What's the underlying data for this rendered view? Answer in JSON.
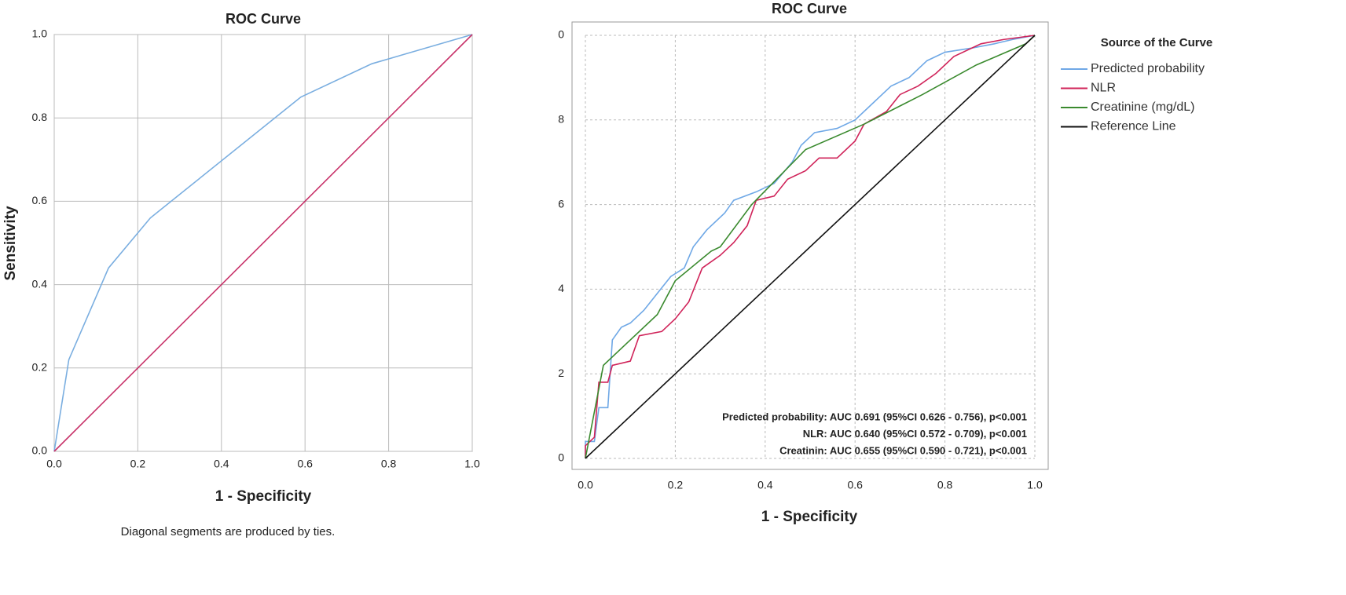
{
  "chart_data": [
    {
      "type": "line",
      "title": "ROC Curve",
      "xlabel": "1 - Specificity",
      "ylabel": "Sensitivity",
      "footnote": "Diagonal segments are produced by ties.",
      "xlim": [
        0,
        1
      ],
      "ylim": [
        0,
        1
      ],
      "xticks": [
        {
          "value": 0,
          "label": "0.0"
        },
        0.2,
        0.4,
        0.6,
        0.8,
        {
          "value": 1,
          "label": "1.0"
        }
      ],
      "yticks": [
        {
          "value": 0,
          "label": "0.0"
        },
        0.2,
        0.4,
        0.6,
        0.8,
        {
          "value": 1,
          "label": "1.0"
        }
      ],
      "grid": true,
      "grid_style": "solid",
      "series": [
        {
          "color": "#7aaee0",
          "x": [
            0,
            0.035,
            0.13,
            0.23,
            0.59,
            0.76,
            1
          ],
          "values": [
            0,
            0.22,
            0.44,
            0.56,
            0.85,
            0.93,
            1
          ]
        },
        {
          "color": "#c8336a",
          "x": [
            0,
            1
          ],
          "values": [
            0,
            1
          ]
        }
      ]
    },
    {
      "type": "line",
      "title": "ROC Curve",
      "xlabel": "1 - Specificity",
      "xlim": [
        0,
        1
      ],
      "ylim": [
        0,
        1
      ],
      "xticks": [
        {
          "value": 0,
          "label": "0.0"
        },
        0.2,
        0.4,
        0.6,
        0.8,
        {
          "value": 1,
          "label": "1.0"
        }
      ],
      "yticks": [
        0,
        {
          "value": 0.2,
          "label": "2"
        },
        {
          "value": 0.4,
          "label": "4"
        },
        {
          "value": 0.6,
          "label": "6"
        },
        {
          "value": 0.8,
          "label": "8"
        },
        {
          "value": 1,
          "label": "0"
        }
      ],
      "grid": true,
      "grid_style": "dotted",
      "legend": "right",
      "legend_title": "Source of the Curve",
      "series": [
        {
          "name": "Predicted probability",
          "color": "#6fa8e6",
          "x": [
            0,
            0,
            0.02,
            0.03,
            0.05,
            0.06,
            0.08,
            0.1,
            0.13,
            0.16,
            0.19,
            0.22,
            0.24,
            0.27,
            0.31,
            0.33,
            0.38,
            0.42,
            0.46,
            0.48,
            0.51,
            0.56,
            0.6,
            0.64,
            0.68,
            0.72,
            0.76,
            0.8,
            0.86,
            0.91,
            0.95,
            1
          ],
          "values": [
            0,
            0.04,
            0.04,
            0.12,
            0.12,
            0.28,
            0.31,
            0.32,
            0.35,
            0.39,
            0.43,
            0.45,
            0.5,
            0.54,
            0.58,
            0.61,
            0.63,
            0.65,
            0.7,
            0.74,
            0.77,
            0.78,
            0.8,
            0.84,
            0.88,
            0.9,
            0.94,
            0.96,
            0.97,
            0.98,
            0.99,
            1
          ]
        },
        {
          "name": "NLR",
          "color": "#d0245a",
          "x": [
            0,
            0,
            0.02,
            0.03,
            0.05,
            0.06,
            0.1,
            0.12,
            0.17,
            0.2,
            0.23,
            0.26,
            0.3,
            0.33,
            0.36,
            0.38,
            0.42,
            0.45,
            0.49,
            0.52,
            0.56,
            0.6,
            0.62,
            0.67,
            0.7,
            0.74,
            0.78,
            0.82,
            0.88,
            0.93,
            1
          ],
          "values": [
            0,
            0.03,
            0.05,
            0.18,
            0.18,
            0.22,
            0.23,
            0.29,
            0.3,
            0.33,
            0.37,
            0.45,
            0.48,
            0.51,
            0.55,
            0.61,
            0.62,
            0.66,
            0.68,
            0.71,
            0.71,
            0.75,
            0.79,
            0.82,
            0.86,
            0.88,
            0.91,
            0.95,
            0.98,
            0.99,
            1
          ]
        },
        {
          "name": "Creatinine (mg/dL)",
          "color": "#3a8a2e",
          "x": [
            0,
            0.02,
            0.04,
            0.09,
            0.16,
            0.2,
            0.28,
            0.3,
            0.37,
            0.49,
            0.62,
            0.75,
            0.87,
            0.98,
            1
          ],
          "values": [
            0,
            0.11,
            0.22,
            0.27,
            0.34,
            0.42,
            0.49,
            0.5,
            0.6,
            0.73,
            0.79,
            0.86,
            0.93,
            0.98,
            1
          ]
        },
        {
          "name": "Reference Line",
          "color": "#111111",
          "x": [
            0,
            1
          ],
          "values": [
            0,
            1
          ]
        }
      ],
      "annotations": [
        "Predicted probability: AUC 0.691 (95%CI 0.626 - 0.756), p<0.001",
        "NLR: AUC 0.640 (95%CI 0.572 - 0.709), p<0.001",
        "Creatinin: AUC 0.655 (95%CI 0.590 - 0.721), p<0.001"
      ]
    }
  ]
}
